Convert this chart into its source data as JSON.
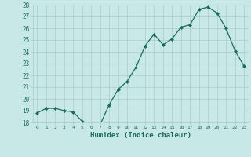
{
  "x": [
    0,
    1,
    2,
    3,
    4,
    5,
    6,
    7,
    8,
    9,
    10,
    11,
    12,
    13,
    14,
    15,
    16,
    17,
    18,
    19,
    20,
    21,
    22,
    23
  ],
  "y": [
    18.8,
    19.2,
    19.2,
    19.0,
    18.9,
    18.1,
    17.8,
    17.8,
    19.5,
    20.8,
    21.5,
    22.7,
    24.5,
    25.5,
    24.6,
    25.1,
    26.1,
    26.3,
    27.6,
    27.8,
    27.3,
    26.0,
    24.1,
    22.8
  ],
  "ylim": [
    18,
    28
  ],
  "yticks": [
    18,
    19,
    20,
    21,
    22,
    23,
    24,
    25,
    26,
    27,
    28
  ],
  "xlim": [
    -0.5,
    23.5
  ],
  "xlabel": "Humidex (Indice chaleur)",
  "line_color": "#1a6b5a",
  "marker_color": "#1a6b5a",
  "bg_color": "#c8e8e8",
  "grid_color": "#a8cccc",
  "tick_color": "#1a6b5a",
  "label_color": "#1a6b5a",
  "font_family": "monospace"
}
